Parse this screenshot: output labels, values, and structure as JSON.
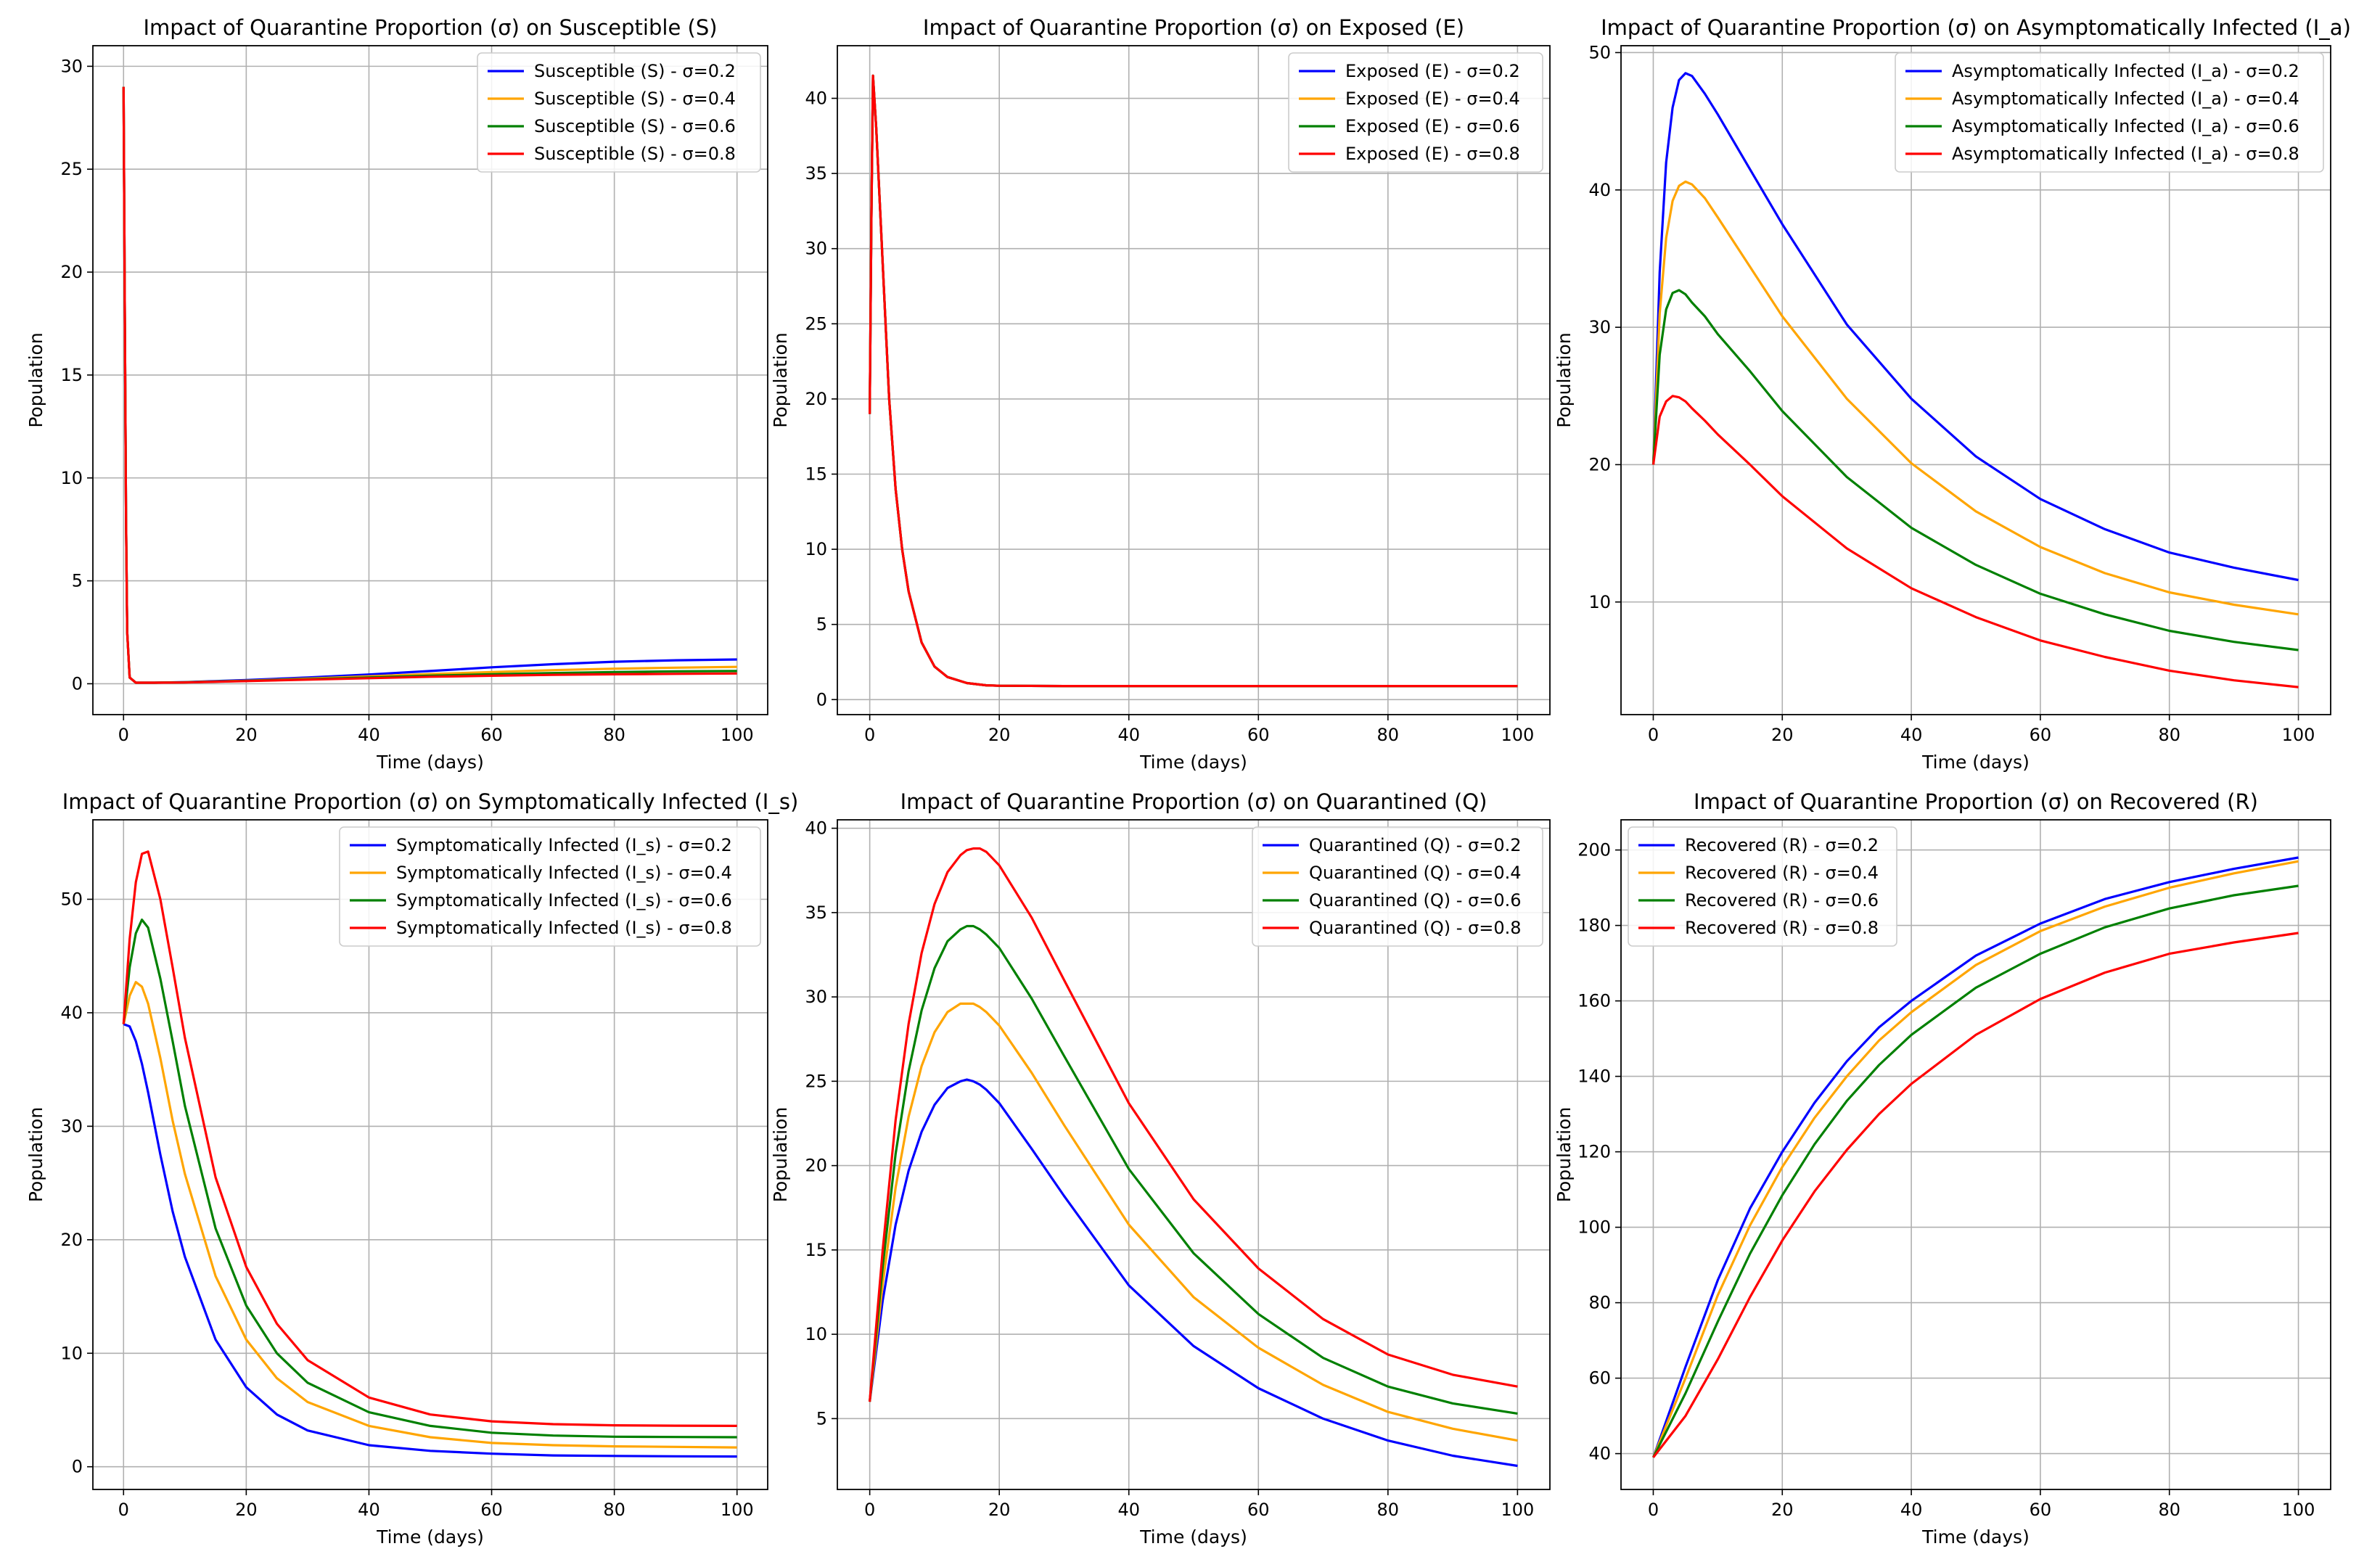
{
  "chart_data": [
    {
      "type": "line",
      "title": "Impact of Quarantine Proportion (σ) on Susceptible (S)",
      "xlabel": "Time (days)",
      "ylabel": "Population",
      "xlim": [
        -5,
        105
      ],
      "ylim": [
        -1.5,
        31
      ],
      "xticks": [
        0,
        20,
        40,
        60,
        80,
        100
      ],
      "yticks": [
        0,
        5,
        10,
        15,
        20,
        25,
        30
      ],
      "grid": true,
      "legend_position": "top-right",
      "colors": [
        "#0000ff",
        "#ffa500",
        "#008000",
        "#ff0000"
      ],
      "x": [
        0,
        0.2,
        0.4,
        0.6,
        1,
        2,
        5,
        10,
        20,
        30,
        40,
        50,
        60,
        70,
        80,
        90,
        100
      ],
      "series": [
        {
          "name": "Susceptible (S) - σ=0.2",
          "values": [
            29,
            18,
            8,
            2.5,
            0.3,
            0.05,
            0.05,
            0.08,
            0.18,
            0.3,
            0.45,
            0.62,
            0.8,
            0.95,
            1.07,
            1.14,
            1.18
          ]
        },
        {
          "name": "Susceptible (S) - σ=0.4",
          "values": [
            29,
            18,
            8,
            2.5,
            0.3,
            0.05,
            0.05,
            0.07,
            0.15,
            0.25,
            0.36,
            0.47,
            0.57,
            0.66,
            0.73,
            0.78,
            0.82
          ]
        },
        {
          "name": "Susceptible (S) - σ=0.6",
          "values": [
            29,
            18,
            8,
            2.5,
            0.3,
            0.05,
            0.05,
            0.07,
            0.14,
            0.22,
            0.31,
            0.39,
            0.46,
            0.52,
            0.57,
            0.6,
            0.62
          ]
        },
        {
          "name": "Susceptible (S) - σ=0.8",
          "values": [
            29,
            18,
            8,
            2.5,
            0.3,
            0.05,
            0.05,
            0.06,
            0.13,
            0.2,
            0.27,
            0.34,
            0.39,
            0.43,
            0.46,
            0.48,
            0.5
          ]
        }
      ]
    },
    {
      "type": "line",
      "title": "Impact of Quarantine Proportion (σ) on Exposed (E)",
      "xlabel": "Time (days)",
      "ylabel": "Population",
      "xlim": [
        -5,
        105
      ],
      "ylim": [
        -1,
        43.5
      ],
      "xticks": [
        0,
        20,
        40,
        60,
        80,
        100
      ],
      "yticks": [
        0,
        5,
        10,
        15,
        20,
        25,
        30,
        35,
        40
      ],
      "grid": true,
      "legend_position": "top-right",
      "colors": [
        "#0000ff",
        "#ffa500",
        "#008000",
        "#ff0000"
      ],
      "x": [
        0,
        0.25,
        0.5,
        1,
        2,
        3,
        4,
        5,
        6,
        8,
        10,
        12,
        15,
        18,
        20,
        30,
        40,
        60,
        80,
        100
      ],
      "series": [
        {
          "name": "Exposed (E) - σ=0.2",
          "values": [
            19,
            32,
            41.5,
            38,
            29,
            20,
            14,
            10,
            7.2,
            3.8,
            2.2,
            1.5,
            1.1,
            0.95,
            0.92,
            0.9,
            0.9,
            0.9,
            0.9,
            0.9
          ]
        },
        {
          "name": "Exposed (E) - σ=0.4",
          "values": [
            19,
            32,
            41.5,
            38,
            29,
            20,
            14,
            10,
            7.2,
            3.8,
            2.2,
            1.5,
            1.1,
            0.95,
            0.92,
            0.9,
            0.9,
            0.9,
            0.9,
            0.9
          ]
        },
        {
          "name": "Exposed (E) - σ=0.6",
          "values": [
            19,
            32,
            41.5,
            38,
            29,
            20,
            14,
            10,
            7.2,
            3.8,
            2.2,
            1.5,
            1.1,
            0.95,
            0.92,
            0.9,
            0.9,
            0.9,
            0.9,
            0.9
          ]
        },
        {
          "name": "Exposed (E) - σ=0.8",
          "values": [
            19,
            32,
            41.5,
            38,
            29,
            20,
            14,
            10,
            7.2,
            3.8,
            2.2,
            1.5,
            1.1,
            0.95,
            0.92,
            0.9,
            0.9,
            0.9,
            0.9,
            0.9
          ]
        }
      ]
    },
    {
      "type": "line",
      "title": "Impact of Quarantine Proportion (σ) on Asymptomatically Infected (I_a)",
      "xlabel": "Time (days)",
      "ylabel": "Population",
      "xlim": [
        -5,
        105
      ],
      "ylim": [
        1.8,
        50.5
      ],
      "xticks": [
        0,
        20,
        40,
        60,
        80,
        100
      ],
      "yticks": [
        10,
        20,
        30,
        40,
        50
      ],
      "grid": true,
      "legend_position": "top-right",
      "colors": [
        "#0000ff",
        "#ffa500",
        "#008000",
        "#ff0000"
      ],
      "x": [
        0,
        1,
        2,
        3,
        4,
        5,
        6,
        8,
        10,
        15,
        20,
        30,
        40,
        50,
        60,
        70,
        80,
        90,
        100
      ],
      "series": [
        {
          "name": "Asymptomatically Infected (I_a) - σ=0.2",
          "values": [
            20,
            34,
            42,
            46,
            48,
            48.5,
            48.3,
            47,
            45.5,
            41.5,
            37.5,
            30.2,
            24.8,
            20.6,
            17.5,
            15.3,
            13.6,
            12.5,
            11.6
          ]
        },
        {
          "name": "Asymptomatically Infected (I_a) - σ=0.4",
          "values": [
            20,
            31,
            36.5,
            39.2,
            40.3,
            40.6,
            40.4,
            39.4,
            38,
            34.4,
            30.8,
            24.8,
            20.1,
            16.6,
            14,
            12.1,
            10.7,
            9.8,
            9.1
          ]
        },
        {
          "name": "Asymptomatically Infected (I_a) - σ=0.6",
          "values": [
            20,
            28,
            31.3,
            32.5,
            32.7,
            32.4,
            31.8,
            30.8,
            29.5,
            26.8,
            23.9,
            19.1,
            15.4,
            12.7,
            10.6,
            9.1,
            7.9,
            7.1,
            6.5
          ]
        },
        {
          "name": "Asymptomatically Infected (I_a) - σ=0.8",
          "values": [
            20,
            23.5,
            24.6,
            25,
            24.9,
            24.6,
            24.1,
            23.2,
            22.2,
            20,
            17.7,
            13.9,
            11,
            8.9,
            7.2,
            6,
            5,
            4.3,
            3.8
          ]
        }
      ]
    },
    {
      "type": "line",
      "title": "Impact of Quarantine Proportion (σ) on Symptomatically Infected (I_s)",
      "xlabel": "Time (days)",
      "ylabel": "Population",
      "xlim": [
        -5,
        105
      ],
      "ylim": [
        -2,
        57
      ],
      "xticks": [
        0,
        20,
        40,
        60,
        80,
        100
      ],
      "yticks": [
        0,
        10,
        20,
        30,
        40,
        50
      ],
      "grid": true,
      "legend_position": "top-right",
      "colors": [
        "#0000ff",
        "#ffa500",
        "#008000",
        "#ff0000"
      ],
      "x": [
        0,
        1,
        2,
        3,
        4,
        6,
        8,
        10,
        15,
        20,
        25,
        30,
        40,
        50,
        60,
        70,
        80,
        90,
        100
      ],
      "series": [
        {
          "name": "Symptomatically Infected (I_s) - σ=0.2",
          "values": [
            39,
            38.8,
            37.5,
            35.5,
            33,
            27.5,
            22.5,
            18.5,
            11.2,
            7,
            4.6,
            3.2,
            1.9,
            1.4,
            1.15,
            1,
            0.95,
            0.92,
            0.9
          ]
        },
        {
          "name": "Symptomatically Infected (I_s) - σ=0.4",
          "values": [
            39,
            41.5,
            42.7,
            42.3,
            40.8,
            36,
            30.5,
            25.8,
            16.8,
            11.2,
            7.8,
            5.7,
            3.6,
            2.6,
            2.1,
            1.9,
            1.8,
            1.75,
            1.7
          ]
        },
        {
          "name": "Symptomatically Infected (I_s) - σ=0.6",
          "values": [
            39,
            44,
            47,
            48.2,
            47.5,
            43,
            37.5,
            31.8,
            21,
            14.2,
            10,
            7.4,
            4.8,
            3.6,
            3,
            2.75,
            2.65,
            2.62,
            2.6
          ]
        },
        {
          "name": "Symptomatically Infected (I_s) - σ=0.8",
          "values": [
            39,
            46.5,
            51.5,
            54,
            54.2,
            50,
            44,
            37.8,
            25.5,
            17.6,
            12.6,
            9.4,
            6.1,
            4.6,
            4,
            3.75,
            3.65,
            3.62,
            3.6
          ]
        }
      ]
    },
    {
      "type": "line",
      "title": "Impact of Quarantine Proportion (σ) on Quarantined (Q)",
      "xlabel": "Time (days)",
      "ylabel": "Population",
      "xlim": [
        -5,
        105
      ],
      "ylim": [
        0.8,
        40.5
      ],
      "xticks": [
        0,
        20,
        40,
        60,
        80,
        100
      ],
      "yticks": [
        5,
        10,
        15,
        20,
        25,
        30,
        35,
        40
      ],
      "grid": true,
      "legend_position": "top-right",
      "colors": [
        "#0000ff",
        "#ffa500",
        "#008000",
        "#ff0000"
      ],
      "x": [
        0,
        2,
        4,
        6,
        8,
        10,
        12,
        14,
        15,
        16,
        17,
        18,
        20,
        25,
        30,
        40,
        50,
        60,
        70,
        80,
        90,
        100
      ],
      "series": [
        {
          "name": "Quarantined (Q) - σ=0.2",
          "values": [
            6,
            12,
            16.5,
            19.7,
            22,
            23.6,
            24.6,
            25,
            25.1,
            25,
            24.8,
            24.5,
            23.7,
            21,
            18.2,
            12.9,
            9.3,
            6.8,
            5,
            3.7,
            2.8,
            2.2
          ]
        },
        {
          "name": "Quarantined (Q) - σ=0.4",
          "values": [
            6,
            13,
            18.7,
            22.9,
            25.9,
            27.9,
            29.1,
            29.6,
            29.6,
            29.6,
            29.4,
            29.1,
            28.3,
            25.5,
            22.4,
            16.5,
            12.2,
            9.2,
            7,
            5.4,
            4.4,
            3.7
          ]
        },
        {
          "name": "Quarantined (Q) - σ=0.6",
          "values": [
            6,
            14,
            20.7,
            25.6,
            29.2,
            31.7,
            33.3,
            34,
            34.2,
            34.2,
            34,
            33.7,
            32.9,
            29.9,
            26.5,
            19.8,
            14.8,
            11.2,
            8.6,
            6.9,
            5.9,
            5.3
          ]
        },
        {
          "name": "Quarantined (Q) - σ=0.8",
          "values": [
            6,
            15,
            22.7,
            28.4,
            32.6,
            35.5,
            37.4,
            38.4,
            38.7,
            38.8,
            38.8,
            38.6,
            37.8,
            34.7,
            31,
            23.7,
            18,
            13.9,
            10.9,
            8.8,
            7.6,
            6.9
          ]
        }
      ]
    },
    {
      "type": "line",
      "title": "Impact of Quarantine Proportion (σ) on Recovered (R)",
      "xlabel": "Time (days)",
      "ylabel": "Population",
      "xlim": [
        -5,
        105
      ],
      "ylim": [
        30.5,
        208
      ],
      "xticks": [
        0,
        20,
        40,
        60,
        80,
        100
      ],
      "yticks": [
        40,
        60,
        80,
        100,
        120,
        140,
        160,
        180,
        200
      ],
      "grid": true,
      "legend_position": "top-left",
      "colors": [
        "#0000ff",
        "#ffa500",
        "#008000",
        "#ff0000"
      ],
      "x": [
        0,
        5,
        10,
        15,
        20,
        25,
        30,
        35,
        40,
        50,
        60,
        70,
        80,
        90,
        100
      ],
      "series": [
        {
          "name": "Recovered (R) - σ=0.2",
          "values": [
            39,
            63,
            86,
            105,
            120,
            133,
            144,
            153,
            160,
            172,
            180.5,
            187,
            191.5,
            195,
            198
          ]
        },
        {
          "name": "Recovered (R) - σ=0.4",
          "values": [
            39,
            60,
            82,
            100.5,
            116,
            129,
            140,
            149.5,
            157,
            169.5,
            178.5,
            185,
            190,
            193.8,
            197
          ]
        },
        {
          "name": "Recovered (R) - σ=0.6",
          "values": [
            39,
            56,
            75,
            93,
            108.5,
            122,
            133.5,
            143,
            151,
            163.5,
            172.5,
            179.5,
            184.5,
            188,
            190.5
          ]
        },
        {
          "name": "Recovered (R) - σ=0.8",
          "values": [
            39,
            50,
            65,
            81.5,
            96.5,
            109.5,
            120.5,
            130,
            138,
            151,
            160.5,
            167.5,
            172.5,
            175.5,
            178
          ]
        }
      ]
    }
  ]
}
